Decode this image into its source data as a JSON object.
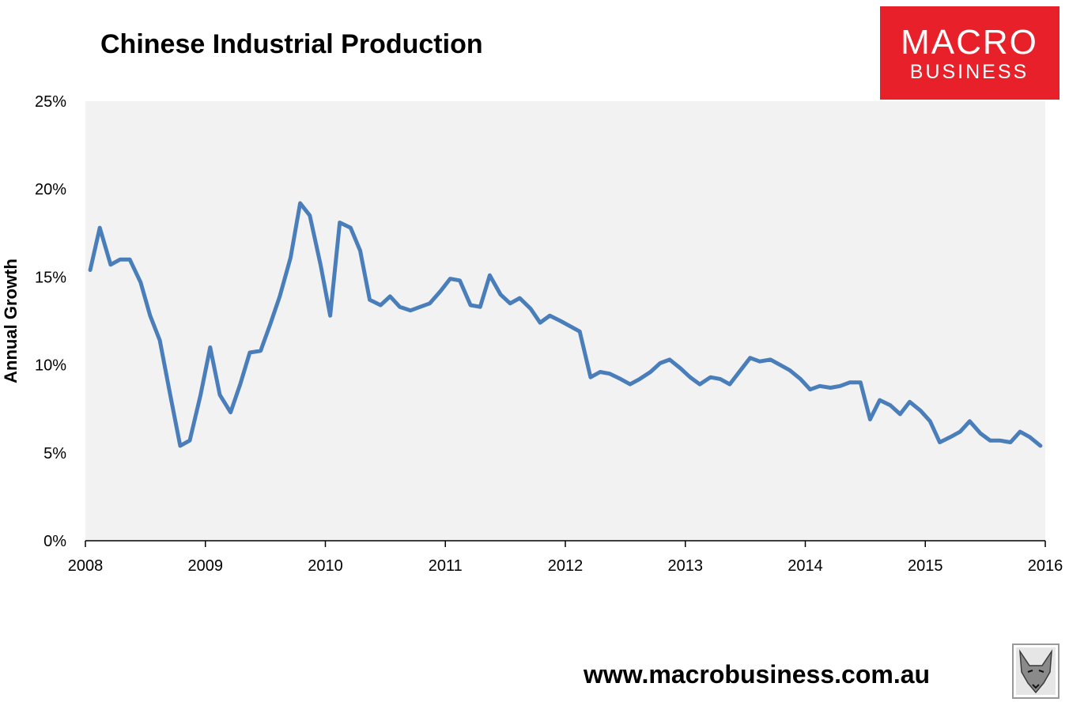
{
  "brand": {
    "logo_line1": "MACRO",
    "logo_line2": "BUSINESS",
    "logo_color": "#e8202a",
    "website": "www.macrobusiness.com.au",
    "mascot_icon": "wolf-head-icon"
  },
  "chart_data": {
    "type": "line",
    "title": "Chinese Industrial Production",
    "ylabel": "Annual Growth",
    "xlabel": "",
    "xlim": [
      2008,
      2016
    ],
    "ylim": [
      0,
      25
    ],
    "x_ticks": [
      "2008",
      "2009",
      "2010",
      "2011",
      "2012",
      "2013",
      "2014",
      "2015",
      "2016"
    ],
    "y_ticks": [
      "0%",
      "5%",
      "10%",
      "15%",
      "20%",
      "25%"
    ],
    "grid": false,
    "legend": "none",
    "plot_background": "#f2f2f2",
    "line_color": "#4a7ebb",
    "series": [
      {
        "x": [
          2008.04,
          2008.12,
          2008.21,
          2008.29,
          2008.37,
          2008.46,
          2008.54,
          2008.62,
          2008.71,
          2008.79,
          2008.87,
          2008.96,
          2009.04,
          2009.12,
          2009.21,
          2009.29,
          2009.37,
          2009.46,
          2009.54,
          2009.62,
          2009.71,
          2009.79,
          2009.87,
          2009.96,
          2010.04,
          2010.12,
          2010.21,
          2010.29,
          2010.37,
          2010.46,
          2010.54,
          2010.62,
          2010.71,
          2010.79,
          2010.87,
          2010.96,
          2011.04,
          2011.12,
          2011.21,
          2011.29,
          2011.37,
          2011.46,
          2011.54,
          2011.62,
          2011.71,
          2011.79,
          2011.87,
          2011.96,
          2012.04,
          2012.12,
          2012.21,
          2012.29,
          2012.37,
          2012.46,
          2012.54,
          2012.62,
          2012.71,
          2012.79,
          2012.87,
          2012.96,
          2013.04,
          2013.12,
          2013.21,
          2013.29,
          2013.37,
          2013.46,
          2013.54,
          2013.62,
          2013.71,
          2013.79,
          2013.87,
          2013.96,
          2014.04,
          2014.12,
          2014.21,
          2014.29,
          2014.37,
          2014.46,
          2014.54,
          2014.62,
          2014.71,
          2014.79,
          2014.87,
          2014.96,
          2015.04,
          2015.12,
          2015.21,
          2015.29,
          2015.37,
          2015.46,
          2015.54,
          2015.62,
          2015.71,
          2015.79,
          2015.87,
          2015.96
        ],
        "values": [
          15.4,
          17.8,
          15.7,
          16.0,
          16.0,
          14.7,
          12.8,
          11.4,
          8.2,
          5.4,
          5.7,
          8.3,
          11.0,
          8.3,
          7.3,
          8.9,
          10.7,
          10.8,
          12.3,
          13.9,
          16.1,
          19.2,
          18.5,
          15.7,
          12.8,
          18.1,
          17.8,
          16.5,
          13.7,
          13.4,
          13.9,
          13.3,
          13.1,
          13.3,
          13.5,
          14.2,
          14.9,
          14.8,
          13.4,
          13.3,
          15.1,
          14.0,
          13.5,
          13.8,
          13.2,
          12.4,
          12.8,
          12.5,
          12.2,
          11.9,
          9.3,
          9.6,
          9.5,
          9.2,
          8.9,
          9.2,
          9.6,
          10.1,
          10.3,
          9.8,
          9.3,
          8.9,
          9.3,
          9.2,
          8.9,
          9.7,
          10.4,
          10.2,
          10.3,
          10.0,
          9.7,
          9.2,
          8.6,
          8.8,
          8.7,
          8.8,
          9.0,
          9.0,
          6.9,
          8.0,
          7.7,
          7.2,
          7.9,
          7.4,
          6.8,
          5.6,
          5.9,
          6.2,
          6.8,
          6.1,
          5.7,
          5.7,
          5.6,
          6.2,
          5.9,
          5.4
        ]
      }
    ]
  }
}
